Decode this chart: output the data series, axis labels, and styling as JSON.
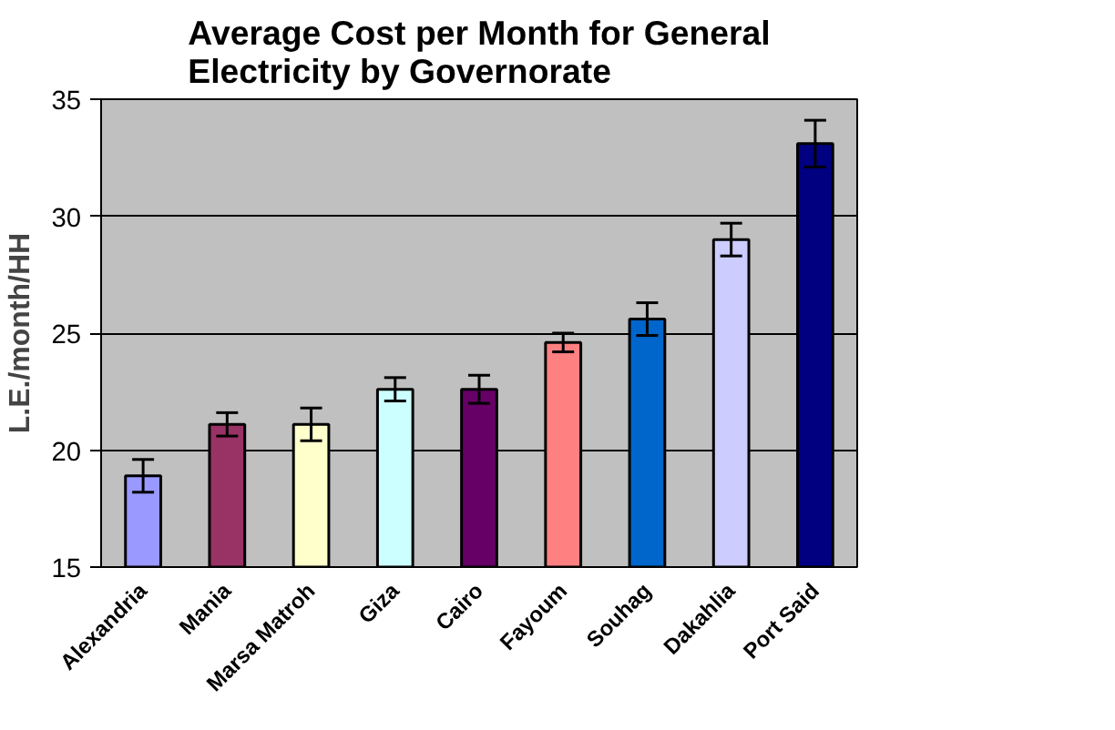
{
  "chart_data": {
    "type": "bar",
    "title": "Average Cost per Month for General\nElectricity by Governorate",
    "ylabel": "L.E./month/HH",
    "categories": [
      "Alexandria",
      "Mania",
      "Marsa Matroh",
      "Giza",
      "Cairo",
      "Fayoum",
      "Souhag",
      "Dakahlia",
      "Port Said"
    ],
    "values": [
      18.9,
      21.1,
      21.1,
      22.6,
      22.6,
      24.6,
      25.6,
      29.0,
      33.1
    ],
    "colors": [
      "#9999ff",
      "#993366",
      "#ffffcc",
      "#ccffff",
      "#660066",
      "#ff8080",
      "#0066cc",
      "#ccccff",
      "#000080"
    ],
    "errors": [
      0.7,
      0.5,
      0.7,
      0.5,
      0.6,
      0.4,
      0.7,
      0.7,
      1.0
    ],
    "ylim": [
      15,
      35
    ],
    "yticks": [
      15,
      20,
      25,
      30,
      35
    ],
    "grid": "y"
  }
}
